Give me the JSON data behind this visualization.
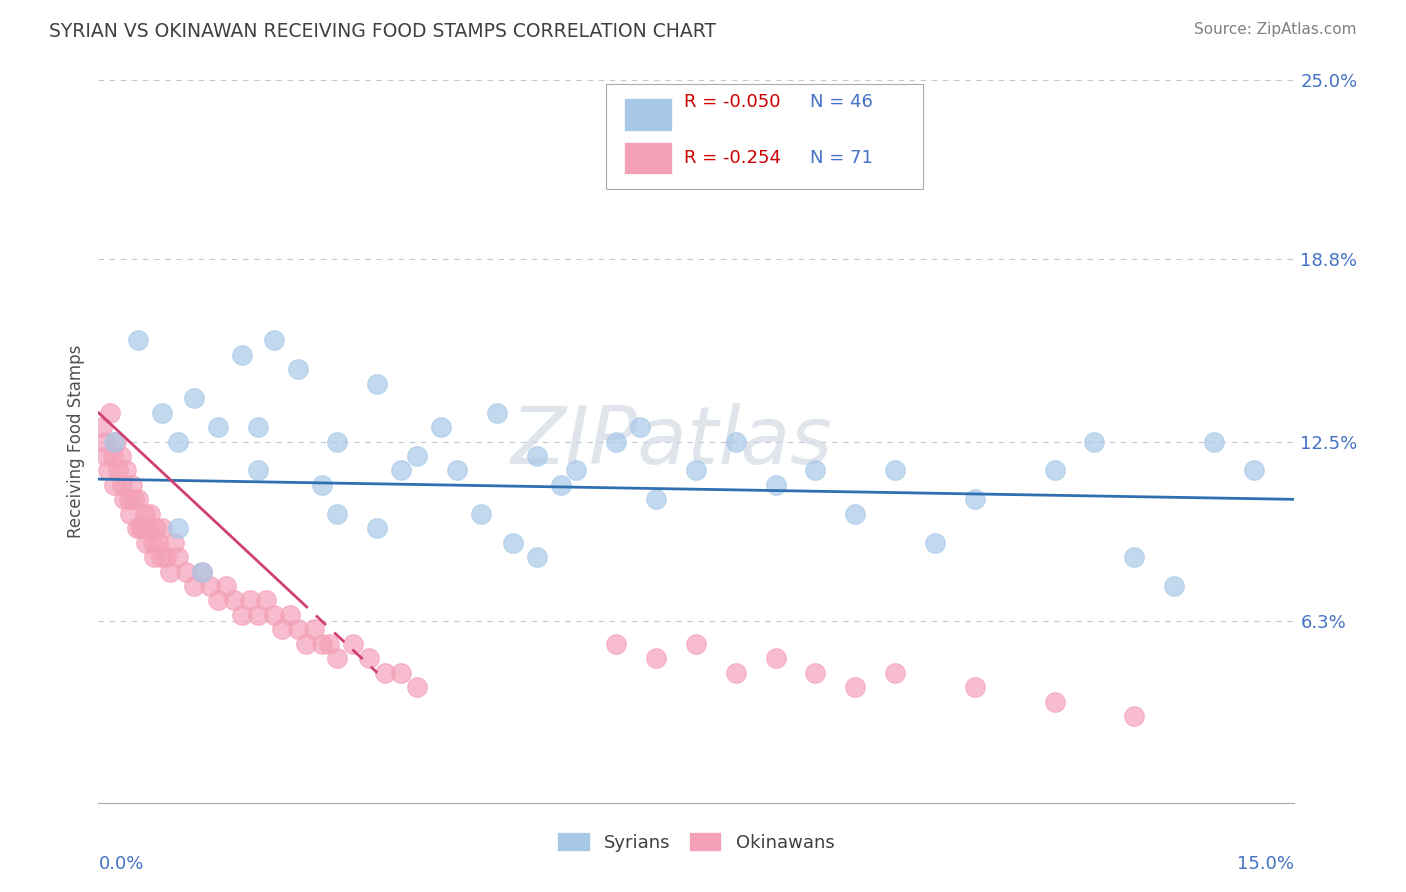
{
  "title": "SYRIAN VS OKINAWAN RECEIVING FOOD STAMPS CORRELATION CHART",
  "source": "Source: ZipAtlas.com",
  "ylabel": "Receiving Food Stamps",
  "xlim": [
    0.0,
    15.0
  ],
  "ylim": [
    0.0,
    25.0
  ],
  "y_ticks": [
    0.0,
    6.3,
    12.5,
    18.8,
    25.0
  ],
  "y_tick_labels": [
    "",
    "6.3%",
    "12.5%",
    "18.8%",
    "25.0%"
  ],
  "legend_r1": "R = -0.050",
  "legend_n1": "N = 46",
  "legend_r2": "R = -0.254",
  "legend_n2": "N = 71",
  "color_syrian": "#a8c8e8",
  "color_okinawan": "#f4a0b8",
  "color_line_syrian": "#3070b0",
  "color_line_okinawan": "#d04070",
  "watermark": "ZIPatlas",
  "bg_color": "#ffffff",
  "grid_color": "#c0c8d8",
  "syrians_x": [
    0.2,
    0.5,
    0.8,
    1.0,
    1.2,
    1.5,
    1.8,
    2.0,
    2.2,
    2.5,
    2.8,
    3.0,
    3.5,
    3.8,
    4.0,
    4.3,
    4.5,
    4.8,
    5.0,
    5.5,
    5.8,
    6.0,
    6.5,
    7.0,
    7.5,
    8.0,
    8.5,
    9.0,
    9.5,
    10.0,
    11.0,
    12.0,
    13.0,
    14.0,
    14.5,
    1.0,
    1.3,
    2.0,
    3.0,
    3.5,
    5.2,
    5.5,
    6.8,
    10.5,
    12.5,
    13.5
  ],
  "syrians_y": [
    12.5,
    16.0,
    13.5,
    12.5,
    14.0,
    13.0,
    15.5,
    13.0,
    16.0,
    15.0,
    11.0,
    12.5,
    14.5,
    11.5,
    12.0,
    13.0,
    11.5,
    10.0,
    13.5,
    12.0,
    11.0,
    11.5,
    12.5,
    10.5,
    11.5,
    12.5,
    11.0,
    11.5,
    10.0,
    11.5,
    10.5,
    11.5,
    8.5,
    12.5,
    11.5,
    9.5,
    8.0,
    11.5,
    10.0,
    9.5,
    9.0,
    8.5,
    13.0,
    9.0,
    12.5,
    7.5
  ],
  "okinawans_x": [
    0.05,
    0.08,
    0.1,
    0.12,
    0.15,
    0.18,
    0.2,
    0.22,
    0.25,
    0.28,
    0.3,
    0.32,
    0.35,
    0.38,
    0.4,
    0.42,
    0.45,
    0.48,
    0.5,
    0.52,
    0.55,
    0.58,
    0.6,
    0.62,
    0.65,
    0.68,
    0.7,
    0.72,
    0.75,
    0.78,
    0.8,
    0.85,
    0.9,
    0.95,
    1.0,
    1.1,
    1.2,
    1.3,
    1.4,
    1.5,
    1.6,
    1.7,
    1.8,
    1.9,
    2.0,
    2.1,
    2.2,
    2.3,
    2.4,
    2.5,
    2.6,
    2.7,
    2.8,
    2.9,
    3.0,
    3.2,
    3.4,
    3.6,
    3.8,
    4.0,
    6.5,
    7.0,
    7.5,
    8.0,
    8.5,
    9.0,
    9.5,
    10.0,
    11.0,
    12.0,
    13.0
  ],
  "okinawans_y": [
    13.0,
    12.5,
    12.0,
    11.5,
    13.5,
    12.0,
    11.0,
    12.5,
    11.5,
    12.0,
    11.0,
    10.5,
    11.5,
    10.5,
    10.0,
    11.0,
    10.5,
    9.5,
    10.5,
    9.5,
    9.5,
    10.0,
    9.0,
    9.5,
    10.0,
    9.0,
    8.5,
    9.5,
    9.0,
    8.5,
    9.5,
    8.5,
    8.0,
    9.0,
    8.5,
    8.0,
    7.5,
    8.0,
    7.5,
    7.0,
    7.5,
    7.0,
    6.5,
    7.0,
    6.5,
    7.0,
    6.5,
    6.0,
    6.5,
    6.0,
    5.5,
    6.0,
    5.5,
    5.5,
    5.0,
    5.5,
    5.0,
    4.5,
    4.5,
    4.0,
    5.5,
    5.0,
    5.5,
    4.5,
    5.0,
    4.5,
    4.0,
    4.5,
    4.0,
    3.5,
    3.0
  ],
  "okinawan_line_x_start": 0.0,
  "okinawan_line_x_end": 3.5,
  "okinawan_line_y_start": 13.5,
  "okinawan_line_y_end": 4.5
}
